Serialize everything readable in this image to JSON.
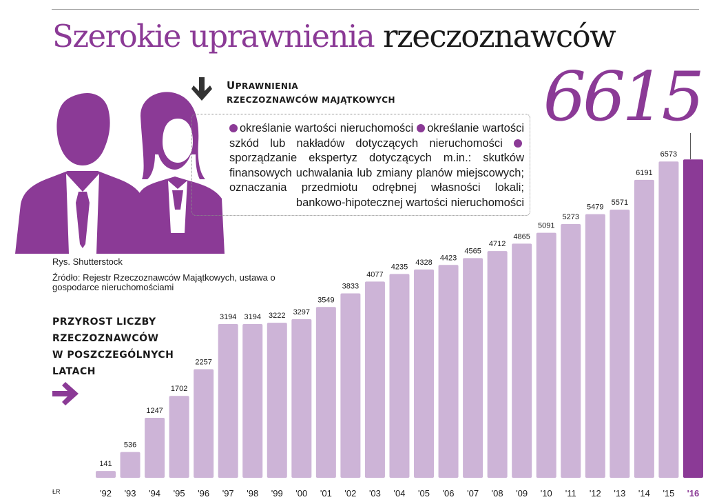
{
  "title": {
    "accent": "Szerokie uprawnienia",
    "rest": "rzeczoznawców"
  },
  "highlight_value": "6615",
  "rights": {
    "heading_line1": [
      "U",
      "PRAWNIENIA"
    ],
    "heading_line2": "RZECZOZNAWCÓW MAJĄTKOWYCH",
    "items": [
      "określanie wartości nieruchomości",
      "określanie wartości szkód lub nakładów dotyczących nieruchomości",
      "sporządzanie ekspertyz dotyczących m.in.: skutków finansowych uchwalania lub zmiany planów miejscowych; oznaczania przedmiotu odrębnej własności lokali; bankowo-hipotecznej wartości nieruchomości"
    ]
  },
  "credit": "Rys. Shutterstock",
  "source": "Źródło: Rejestr Rzeczoznawców Majątkowych, ustawa o gospodarce nieruchomościami",
  "growth_heading": [
    "PRZYROST LICZBY",
    "RZECZOZNAWCÓW",
    "W POSZCZEGÓLNYCH",
    "LATACH"
  ],
  "initials": "ŁR",
  "colors": {
    "accent": "#8b3a96",
    "bar": "#cdb4d7",
    "bar_highlight": "#8b3a96",
    "text": "#1a1a1a"
  },
  "icons": {
    "people": "businessman-businesswoman-icon",
    "down": "arrow-down-icon",
    "right": "arrow-right-icon"
  },
  "chart_data": {
    "type": "bar",
    "categories": [
      "'92",
      "'93",
      "'94",
      "'95",
      "'96",
      "'97",
      "'98",
      "'99",
      "'00",
      "'01",
      "'02",
      "'03",
      "'04",
      "'05",
      "'06",
      "'07",
      "'08",
      "'09",
      "'10",
      "'11",
      "'12",
      "'13",
      "'14",
      "'15",
      "'16"
    ],
    "values": [
      141,
      536,
      1247,
      1702,
      2257,
      3194,
      3194,
      3222,
      3297,
      3549,
      3833,
      4077,
      4235,
      4328,
      4423,
      4565,
      4712,
      4865,
      5091,
      5273,
      5479,
      5571,
      6191,
      6573,
      6615
    ],
    "labels": [
      "141",
      "536",
      "1247",
      "1702",
      "2257",
      "3194",
      "3194",
      "3222",
      "3297",
      "3549",
      "3833",
      "4077",
      "4235",
      "4328",
      "4423",
      "4565",
      "4712",
      "4865",
      "5091",
      "5273",
      "5479",
      "5571",
      "6191",
      "6573",
      ""
    ],
    "highlight_index": 24,
    "ylim": [
      0,
      7000
    ],
    "grid": false,
    "legend": "none"
  }
}
